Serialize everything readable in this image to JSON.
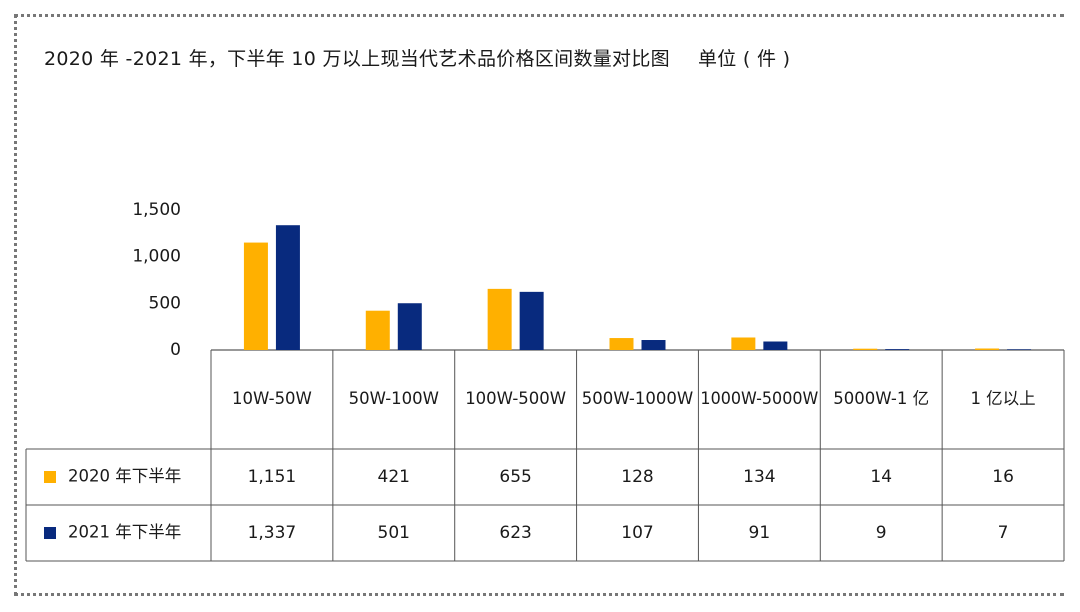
{
  "header": {
    "title": "2020 年 -2021 年，下半年 10 万以上现当代艺术品价格区间数量对比图",
    "unit": "单位 ( 件 )"
  },
  "colors": {
    "series_2020": "#FFB000",
    "series_2021": "#082A7E"
  },
  "chart_data": {
    "type": "bar",
    "title": "2020 年 -2021 年，下半年 10 万以上现当代艺术品价格区间数量对比图",
    "unit": "单位 ( 件 )",
    "categories": [
      "10W-50W",
      "50W-100W",
      "100W-500W",
      "500W-1000W",
      "1000W-5000W",
      "5000W-1 亿",
      "1 亿以上"
    ],
    "series": [
      {
        "name": "2020 年下半年",
        "values": [
          1151,
          421,
          655,
          128,
          134,
          14,
          16
        ],
        "labels": [
          "1,151",
          "421",
          "655",
          "128",
          "134",
          "14",
          "16"
        ]
      },
      {
        "name": "2021 年下半年",
        "values": [
          1337,
          501,
          623,
          107,
          91,
          9,
          7
        ],
        "labels": [
          "1,337",
          "501",
          "623",
          "107",
          "91",
          "9",
          "7"
        ]
      }
    ],
    "yticks": [
      0,
      500,
      1000,
      1500
    ],
    "ytick_labels": [
      "0",
      "500",
      "1,000",
      "1,500"
    ],
    "ylim": [
      0,
      1500
    ],
    "grid": false,
    "legend": "data-table"
  }
}
